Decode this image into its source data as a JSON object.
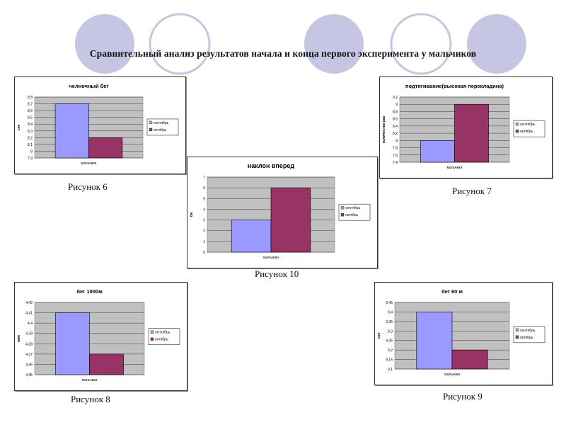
{
  "page": {
    "title": "Сравнительный анализ результатов начала и конца первого эксперимента у мальчиков",
    "colors": {
      "background": "#ffffff",
      "circle_fill": "#c6c6e4",
      "circle_stroke": "#c6c6e4"
    }
  },
  "captions": {
    "fig6": "Рисунок 6",
    "fig7": "Рисунок 7",
    "fig10": "Рисунок 10",
    "fig8": "Рисунок 8",
    "fig9": "Рисунок 9"
  },
  "chart_data": [
    {
      "id": "fig6",
      "type": "bar",
      "title": "челночный бег",
      "xlabel": "мальчики",
      "ylabel": "сек",
      "categories": [
        "мальчики"
      ],
      "series": [
        {
          "name": "сентябрь",
          "values": [
            8.7
          ],
          "color": "#9999ff"
        },
        {
          "name": "октябрь",
          "values": [
            8.2
          ],
          "color": "#993366"
        }
      ],
      "ylim": [
        7.9,
        8.8
      ],
      "ticks": [
        "7,9",
        "8",
        "8,1",
        "8,2",
        "8,3",
        "8,4",
        "8,5",
        "8,6",
        "8,7",
        "8,8"
      ],
      "grid": true,
      "legend": "right"
    },
    {
      "id": "fig7",
      "type": "bar",
      "title": "подтягивание(высокая перекладина)",
      "xlabel": "мальчики",
      "ylabel": "количество раз",
      "categories": [
        "мальчики"
      ],
      "series": [
        {
          "name": "сентябрь",
          "values": [
            8
          ],
          "color": "#9999ff"
        },
        {
          "name": "октябрь",
          "values": [
            9
          ],
          "color": "#993366"
        }
      ],
      "ylim": [
        7.4,
        9.2
      ],
      "ticks": [
        "7,4",
        "7,6",
        "7,8",
        "8",
        "8,2",
        "8,4",
        "8,6",
        "8,8",
        "9",
        "9,2"
      ],
      "grid": true,
      "legend": "right"
    },
    {
      "id": "fig10",
      "type": "bar",
      "title": "наклон вперед",
      "xlabel": "мальчики",
      "ylabel": "см",
      "categories": [
        "мальчики"
      ],
      "series": [
        {
          "name": "сентябрь",
          "values": [
            3
          ],
          "color": "#9999ff"
        },
        {
          "name": "октябрь",
          "values": [
            6
          ],
          "color": "#993366"
        }
      ],
      "ylim": [
        0,
        7
      ],
      "ticks": [
        "0",
        "1",
        "2",
        "3",
        "4",
        "5",
        "6",
        "7"
      ],
      "grid": true,
      "legend": "right"
    },
    {
      "id": "fig8",
      "type": "bar",
      "title": "бег 1000м",
      "xlabel": "мальчики",
      "ylabel": "мин",
      "categories": [
        "мальчики"
      ],
      "series": [
        {
          "name": "сентябрь",
          "values": [
            4.41
          ],
          "color": "#9999ff"
        },
        {
          "name": "октябрь",
          "values": [
            4.37
          ],
          "color": "#993366"
        }
      ],
      "ylim": [
        4.35,
        4.42
      ],
      "ticks": [
        "4,35",
        "4,36",
        "4,37",
        "4,38",
        "4,39",
        "4,4",
        "4,41",
        "4,42"
      ],
      "grid": true,
      "legend": "right"
    },
    {
      "id": "fig9",
      "type": "bar",
      "title": "бег 60 м",
      "xlabel": "мальчики",
      "ylabel": "сек",
      "categories": [
        "мальчики"
      ],
      "series": [
        {
          "name": "сентябрь",
          "values": [
            9.4
          ],
          "color": "#9999ff"
        },
        {
          "name": "октябрь",
          "values": [
            9.2
          ],
          "color": "#993366"
        }
      ],
      "ylim": [
        9.1,
        9.45
      ],
      "ticks": [
        "9,1",
        "9,15",
        "9,2",
        "9,25",
        "9,3",
        "9,35",
        "9,4",
        "9,45"
      ],
      "grid": true,
      "legend": "right"
    }
  ]
}
